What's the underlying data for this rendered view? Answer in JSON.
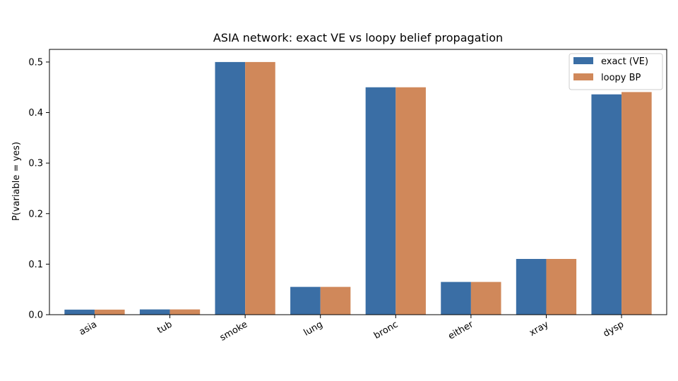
{
  "chart_data": {
    "type": "bar",
    "title": "ASIA network: exact VE vs loopy belief propagation",
    "xlabel": "",
    "ylabel": "P(variable = yes)",
    "categories": [
      "asia",
      "tub",
      "smoke",
      "lung",
      "bronc",
      "either",
      "xray",
      "dysp"
    ],
    "series": [
      {
        "name": "exact (VE)",
        "color": "#3a6ea5",
        "values": [
          0.01,
          0.0104,
          0.5,
          0.055,
          0.45,
          0.0648,
          0.1103,
          0.436
        ]
      },
      {
        "name": "loopy BP",
        "color": "#d0885a",
        "values": [
          0.01,
          0.0104,
          0.5,
          0.055,
          0.45,
          0.0648,
          0.1103,
          0.4406
        ]
      }
    ],
    "ylim": [
      0,
      0.525
    ],
    "yticks": [
      0.0,
      0.1,
      0.2,
      0.3,
      0.4,
      0.5
    ],
    "ytick_labels": [
      "0.0",
      "0.1",
      "0.2",
      "0.3",
      "0.4",
      "0.5"
    ],
    "grid": false,
    "legend_position": "top-right"
  }
}
